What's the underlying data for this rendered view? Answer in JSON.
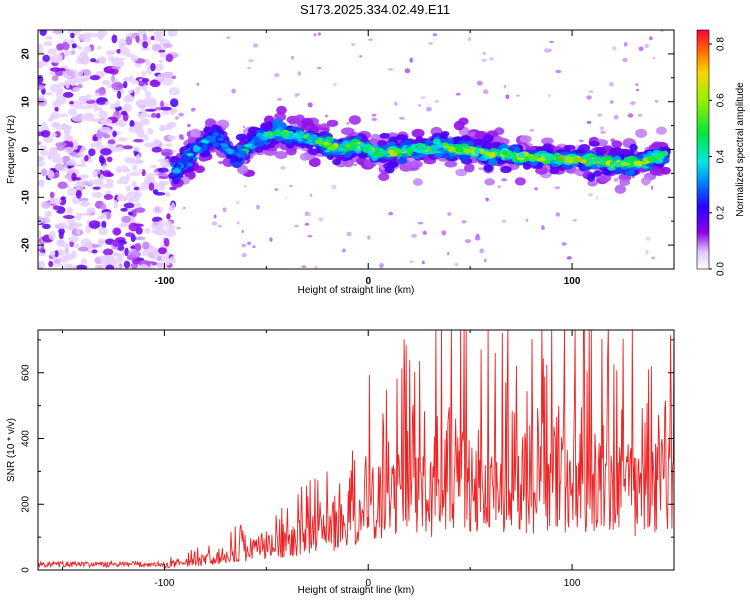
{
  "figure": {
    "title": "S173.2025.334.02.49.E11"
  },
  "chart_data": [
    {
      "type": "heatmap",
      "xlabel": "Height of straight line (km)",
      "ylabel": "Frequency (Hz)",
      "xlim": [
        -162,
        150
      ],
      "ylim": [
        -25,
        25
      ],
      "xticks": [
        -100,
        0,
        100
      ],
      "yticks": [
        -20,
        -10,
        0,
        10,
        20
      ],
      "colorbar": {
        "label": "Normalized spectral amplitude",
        "range": [
          0.0,
          0.85
        ],
        "ticks": [
          0.0,
          0.2,
          0.4,
          0.6,
          0.8
        ]
      },
      "ridge": [
        {
          "x": -95,
          "y": -5,
          "amp": 0.35
        },
        {
          "x": -85,
          "y": 0,
          "amp": 0.4
        },
        {
          "x": -75,
          "y": 3,
          "amp": 0.35
        },
        {
          "x": -65,
          "y": -2,
          "amp": 0.4
        },
        {
          "x": -55,
          "y": 2,
          "amp": 0.45
        },
        {
          "x": -45,
          "y": 3.5,
          "amp": 0.5
        },
        {
          "x": -35,
          "y": 3,
          "amp": 0.5
        },
        {
          "x": -25,
          "y": 2,
          "amp": 0.55
        },
        {
          "x": -15,
          "y": 0,
          "amp": 0.7
        },
        {
          "x": -5,
          "y": 1,
          "amp": 0.6
        },
        {
          "x": 5,
          "y": -1,
          "amp": 0.55
        },
        {
          "x": 15,
          "y": -0.5,
          "amp": 0.65
        },
        {
          "x": 25,
          "y": 0,
          "amp": 0.6
        },
        {
          "x": 35,
          "y": 0.5,
          "amp": 0.55
        },
        {
          "x": 45,
          "y": 0,
          "amp": 0.6
        },
        {
          "x": 55,
          "y": -0.5,
          "amp": 0.6
        },
        {
          "x": 65,
          "y": -1,
          "amp": 0.65
        },
        {
          "x": 75,
          "y": -1.5,
          "amp": 0.6
        },
        {
          "x": 85,
          "y": -1.5,
          "amp": 0.65
        },
        {
          "x": 95,
          "y": -2,
          "amp": 0.7
        },
        {
          "x": 105,
          "y": -2,
          "amp": 0.7
        },
        {
          "x": 115,
          "y": -2.5,
          "amp": 0.7
        },
        {
          "x": 125,
          "y": -3,
          "amp": 0.65
        },
        {
          "x": 135,
          "y": -2.5,
          "amp": 0.6
        },
        {
          "x": 145,
          "y": -1,
          "amp": 0.55
        }
      ]
    },
    {
      "type": "line",
      "xlabel": "Height of straight line (km)",
      "ylabel": "SNR (10 * v/v)",
      "xlim": [
        -162,
        150
      ],
      "ylim": [
        0,
        730
      ],
      "xticks": [
        -100,
        0,
        100
      ],
      "yticks": [
        0,
        200,
        400,
        600
      ],
      "color": "#ee2222",
      "envelope": {
        "x": [
          -162,
          -120,
          -100,
          -80,
          -60,
          -40,
          -20,
          0,
          20,
          40,
          60,
          80,
          100,
          120,
          140,
          150
        ],
        "y": [
          15,
          15,
          18,
          40,
          80,
          110,
          170,
          250,
          320,
          350,
          380,
          360,
          380,
          360,
          330,
          360
        ]
      }
    }
  ]
}
